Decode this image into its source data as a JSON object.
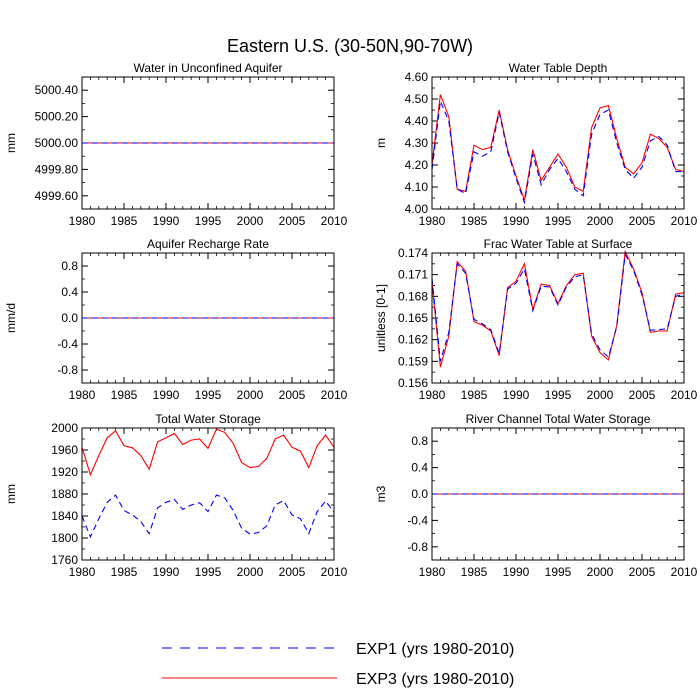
{
  "figure": {
    "title": "Eastern U.S. (30-50N,90-70W)"
  },
  "legend": {
    "entries": [
      {
        "name": "EXP1 (yrs 1980-2010)",
        "color": "#0000ff",
        "dash": true
      },
      {
        "name": "EXP3 (yrs 1980-2010)",
        "color": "#ff0000",
        "dash": false
      }
    ]
  },
  "chart_data": [
    {
      "type": "line",
      "title": "Water in Unconfined Aquifer",
      "xlabel": "",
      "ylabel": "mm",
      "xlim": [
        1980,
        2010
      ],
      "ylim": [
        4999.5,
        5000.5
      ],
      "xticks": [
        1980,
        1985,
        1990,
        1995,
        2000,
        2005,
        2010
      ],
      "yticks": [
        4999.6,
        4999.8,
        5000.0,
        5000.2,
        5000.4
      ],
      "ytick_labels": [
        "4999.60",
        "4999.80",
        "5000.00",
        "5000.20",
        "5000.40"
      ],
      "x": [
        1980,
        2010
      ],
      "series": [
        {
          "name": "EXP3 (yrs 1980-2010)",
          "values": [
            5000.0,
            5000.0
          ]
        },
        {
          "name": "EXP1 (yrs 1980-2010)",
          "values": [
            5000.0,
            5000.0
          ]
        }
      ]
    },
    {
      "type": "line",
      "title": "Water Table Depth",
      "xlabel": "",
      "ylabel": "m",
      "xlim": [
        1980,
        2010
      ],
      "ylim": [
        4.0,
        4.6
      ],
      "xticks": [
        1980,
        1985,
        1990,
        1995,
        2000,
        2005,
        2010
      ],
      "yticks": [
        4.0,
        4.1,
        4.2,
        4.3,
        4.4,
        4.5,
        4.6
      ],
      "ytick_labels": [
        "4.00",
        "4.10",
        "4.20",
        "4.30",
        "4.40",
        "4.50",
        "4.60"
      ],
      "x": [
        1980,
        1981,
        1982,
        1983,
        1984,
        1985,
        1986,
        1987,
        1988,
        1989,
        1990,
        1991,
        1992,
        1993,
        1994,
        1995,
        1996,
        1997,
        1998,
        1999,
        2000,
        2001,
        2002,
        2003,
        2004,
        2005,
        2006,
        2007,
        2008,
        2009,
        2010
      ],
      "series": [
        {
          "name": "EXP3 (yrs 1980-2010)",
          "values": [
            4.2,
            4.52,
            4.42,
            4.09,
            4.08,
            4.29,
            4.27,
            4.28,
            4.45,
            4.27,
            4.15,
            4.04,
            4.27,
            4.13,
            4.19,
            4.25,
            4.19,
            4.1,
            4.08,
            4.37,
            4.46,
            4.47,
            4.32,
            4.19,
            4.16,
            4.21,
            4.34,
            4.32,
            4.28,
            4.18,
            4.17
          ]
        },
        {
          "name": "EXP1 (yrs 1980-2010)",
          "values": [
            4.18,
            4.49,
            4.4,
            4.09,
            4.07,
            4.26,
            4.24,
            4.26,
            4.44,
            4.26,
            4.14,
            4.03,
            4.25,
            4.11,
            4.18,
            4.23,
            4.17,
            4.09,
            4.06,
            4.34,
            4.43,
            4.45,
            4.3,
            4.18,
            4.14,
            4.19,
            4.31,
            4.33,
            4.29,
            4.17,
            4.17
          ]
        }
      ]
    },
    {
      "type": "line",
      "title": "Aquifer Recharge Rate",
      "xlabel": "",
      "ylabel": "mm/d",
      "xlim": [
        1980,
        2010
      ],
      "ylim": [
        -1.0,
        1.0
      ],
      "xticks": [
        1980,
        1985,
        1990,
        1995,
        2000,
        2005,
        2010
      ],
      "yticks": [
        -0.8,
        -0.4,
        0.0,
        0.4,
        0.8
      ],
      "ytick_labels": [
        "-0.8",
        "-0.4",
        "0.0",
        "0.4",
        "0.8"
      ],
      "x": [
        1980,
        2010
      ],
      "series": [
        {
          "name": "EXP3 (yrs 1980-2010)",
          "values": [
            0.0,
            0.0
          ]
        },
        {
          "name": "EXP1 (yrs 1980-2010)",
          "values": [
            0.0,
            0.0
          ]
        }
      ]
    },
    {
      "type": "line",
      "title": "Frac Water Table at Surface",
      "xlabel": "",
      "ylabel": "unitless [0-1]",
      "xlim": [
        1980,
        2010
      ],
      "ylim": [
        0.156,
        0.174
      ],
      "xticks": [
        1980,
        1985,
        1990,
        1995,
        2000,
        2005,
        2010
      ],
      "yticks": [
        0.156,
        0.159,
        0.162,
        0.165,
        0.168,
        0.171,
        0.174
      ],
      "ytick_labels": [
        "0.156",
        "0.159",
        "0.162",
        "0.165",
        "0.168",
        "0.171",
        "0.174"
      ],
      "x": [
        1980,
        1981,
        1982,
        1983,
        1984,
        1985,
        1986,
        1987,
        1988,
        1989,
        1990,
        1991,
        1992,
        1993,
        1994,
        1995,
        1996,
        1997,
        1998,
        1999,
        2000,
        2001,
        2002,
        2003,
        2004,
        2005,
        2006,
        2007,
        2008,
        2009,
        2010
      ],
      "series": [
        {
          "name": "EXP3 (yrs 1980-2010)",
          "values": [
            0.17,
            0.1582,
            0.1625,
            0.1728,
            0.1715,
            0.1645,
            0.164,
            0.1632,
            0.1598,
            0.1692,
            0.1701,
            0.1725,
            0.1662,
            0.1697,
            0.1695,
            0.167,
            0.1695,
            0.171,
            0.1712,
            0.1625,
            0.1602,
            0.1592,
            0.164,
            0.1742,
            0.1718,
            0.1685,
            0.163,
            0.1632,
            0.1632,
            0.1683,
            0.1685
          ]
        },
        {
          "name": "EXP1 (yrs 1980-2010)",
          "values": [
            0.1705,
            0.159,
            0.163,
            0.1725,
            0.1712,
            0.1648,
            0.1642,
            0.1634,
            0.1601,
            0.169,
            0.1698,
            0.1718,
            0.166,
            0.1694,
            0.1693,
            0.1668,
            0.1693,
            0.1707,
            0.171,
            0.1628,
            0.1606,
            0.1596,
            0.1638,
            0.1738,
            0.1716,
            0.1682,
            0.1633,
            0.1634,
            0.1635,
            0.168,
            0.1683
          ]
        }
      ]
    },
    {
      "type": "line",
      "title": "Total Water Storage",
      "xlabel": "",
      "ylabel": "mm",
      "xlim": [
        1980,
        2010
      ],
      "ylim": [
        1760,
        2000
      ],
      "xticks": [
        1980,
        1985,
        1990,
        1995,
        2000,
        2005,
        2010
      ],
      "yticks": [
        1760,
        1800,
        1840,
        1880,
        1920,
        1960,
        2000
      ],
      "ytick_labels": [
        "1760",
        "1800",
        "1840",
        "1880",
        "1920",
        "1960",
        "2000"
      ],
      "x": [
        1980,
        1981,
        1982,
        1983,
        1984,
        1985,
        1986,
        1987,
        1988,
        1989,
        1990,
        1991,
        1992,
        1993,
        1994,
        1995,
        1996,
        1997,
        1998,
        1999,
        2000,
        2001,
        2002,
        2003,
        2004,
        2005,
        2006,
        2007,
        2008,
        2009,
        2010
      ],
      "series": [
        {
          "name": "EXP3 (yrs 1980-2010)",
          "values": [
            1965,
            1915,
            1950,
            1982,
            1995,
            1968,
            1964,
            1950,
            1925,
            1975,
            1982,
            1990,
            1970,
            1978,
            1980,
            1963,
            1998,
            1992,
            1972,
            1937,
            1928,
            1930,
            1945,
            1980,
            1987,
            1965,
            1958,
            1928,
            1968,
            1987,
            1965
          ]
        },
        {
          "name": "EXP1 (yrs 1980-2010)",
          "values": [
            1840,
            1802,
            1835,
            1865,
            1878,
            1850,
            1842,
            1830,
            1808,
            1855,
            1865,
            1870,
            1852,
            1860,
            1864,
            1848,
            1878,
            1873,
            1850,
            1818,
            1807,
            1810,
            1822,
            1860,
            1868,
            1842,
            1835,
            1808,
            1848,
            1867,
            1847
          ]
        }
      ]
    },
    {
      "type": "line",
      "title": "River Channel Total Water Storage",
      "xlabel": "",
      "ylabel": "m3",
      "xlim": [
        1980,
        2010
      ],
      "ylim": [
        -1.0,
        1.0
      ],
      "xticks": [
        1980,
        1985,
        1990,
        1995,
        2000,
        2005,
        2010
      ],
      "yticks": [
        -0.8,
        -0.4,
        0.0,
        0.4,
        0.8
      ],
      "ytick_labels": [
        "-0.8",
        "-0.4",
        "0.0",
        "0.4",
        "0.8"
      ],
      "x": [
        1980,
        2010
      ],
      "series": [
        {
          "name": "EXP3 (yrs 1980-2010)",
          "values": [
            0.0,
            0.0
          ]
        },
        {
          "name": "EXP1 (yrs 1980-2010)",
          "values": [
            0.0,
            0.0
          ]
        }
      ]
    }
  ]
}
